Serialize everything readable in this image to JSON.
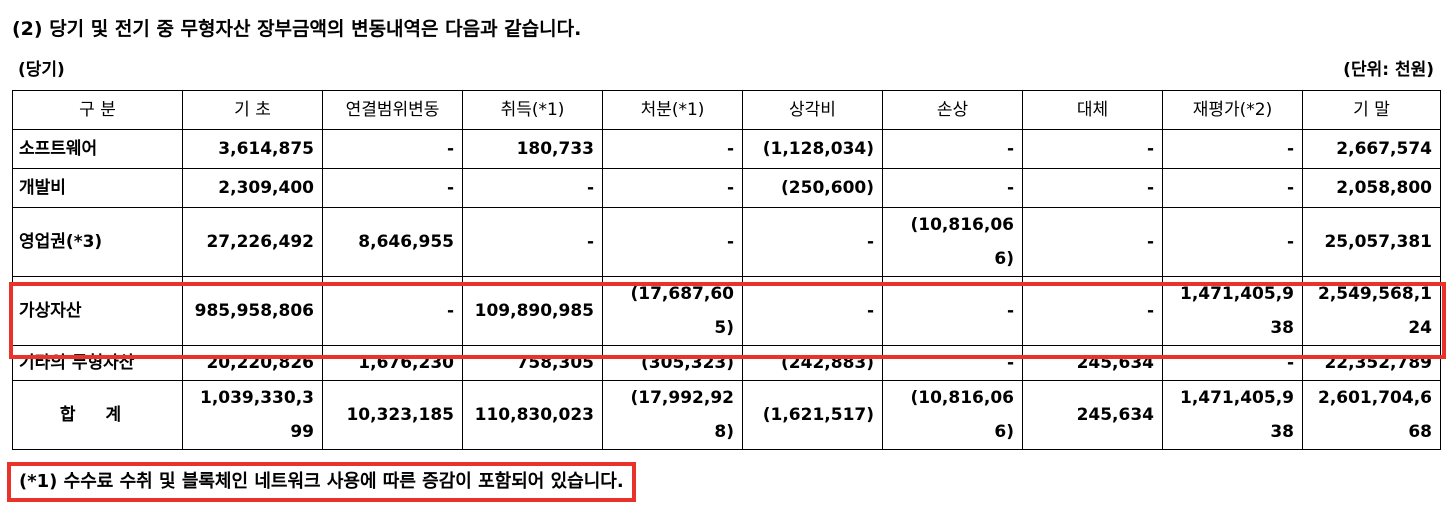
{
  "title": "(2) 당기 및 전기 중 무형자산 장부금액의 변동내역은 다음과 같습니다.",
  "period_label": "(당기)",
  "unit_label": "(단위: 천원)",
  "table": {
    "headers": [
      "구  분",
      "기  초",
      "연결범위변동",
      "취득(*1)",
      "처분(*1)",
      "상각비",
      "손상",
      "대체",
      "재평가(*2)",
      "기  말"
    ],
    "rows": [
      {
        "label": "소프트웨어",
        "cells": [
          "3,614,875",
          "-",
          "180,733",
          "-",
          "(1,128,034)",
          "-",
          "-",
          "-",
          "2,667,574"
        ]
      },
      {
        "label": "개발비",
        "cells": [
          "2,309,400",
          "-",
          "-",
          "-",
          "(250,600)",
          "-",
          "-",
          "-",
          "2,058,800"
        ]
      },
      {
        "label": "영업권(*3)",
        "cells": [
          "27,226,492",
          "8,646,955",
          "-",
          "-",
          "-",
          "(10,816,066)",
          "-",
          "-",
          "25,057,381"
        ]
      },
      {
        "label": "가상자산",
        "cells": [
          "985,958,806",
          "-",
          "109,890,985",
          "(17,687,605)",
          "-",
          "-",
          "-",
          "1,471,405,938",
          "2,549,568,124"
        ]
      },
      {
        "label": "기타의 무형자산",
        "cells": [
          "20,220,826",
          "1,676,230",
          "758,305",
          "(305,323)",
          "(242,883)",
          "-",
          "245,634",
          "-",
          "22,352,789"
        ]
      },
      {
        "label": "합 계",
        "cells": [
          "1,039,330,399",
          "10,323,185",
          "110,830,023",
          "(17,992,928)",
          "(1,621,517)",
          "(10,816,066)",
          "245,634",
          "1,471,405,938",
          "2,601,704,668"
        ]
      }
    ]
  },
  "footnote": "(*1) 수수료 수취 및 블록체인 네트워크 사용에 따른 증감이 포함되어 있습니다.",
  "highlight_color": "#e8322a"
}
